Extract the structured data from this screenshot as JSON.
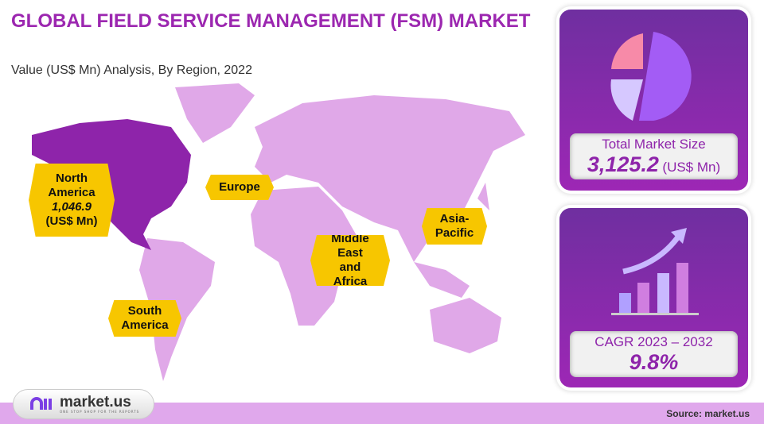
{
  "header": {
    "title": "GLOBAL FIELD SERVICE MANAGEMENT (FSM) MARKET",
    "subtitle": "Value (US$ Mn) Analysis, By Region, 2022"
  },
  "regions": [
    {
      "name_line1": "North",
      "name_line2": "America",
      "value": "1,046.9",
      "unit": "(US$ Mn)",
      "highlighted": true
    },
    {
      "name": "Europe"
    },
    {
      "name_line1": "Asia-",
      "name_line2": "Pacific"
    },
    {
      "name_line1": "Middle",
      "name_line2": "East",
      "name_line3": "and Africa"
    },
    {
      "name_line1": "South",
      "name_line2": "America"
    }
  ],
  "cards": {
    "market_size": {
      "label": "Total Market Size",
      "value": "3,125.2",
      "unit": "(US$ Mn)",
      "icon": "pie-chart-icon"
    },
    "cagr": {
      "label": "CAGR 2023 – 2032",
      "value": "9.8%",
      "icon": "growth-bar-chart-icon"
    }
  },
  "footer": {
    "logo_text": "market.us",
    "logo_tagline": "ONE STOP SHOP FOR THE REPORTS",
    "source": "Source: market.us"
  },
  "colors": {
    "accent": "#9c27b0",
    "map": "#e0a8e8",
    "highlight": "#8e24aa",
    "label": "#f7c600"
  }
}
